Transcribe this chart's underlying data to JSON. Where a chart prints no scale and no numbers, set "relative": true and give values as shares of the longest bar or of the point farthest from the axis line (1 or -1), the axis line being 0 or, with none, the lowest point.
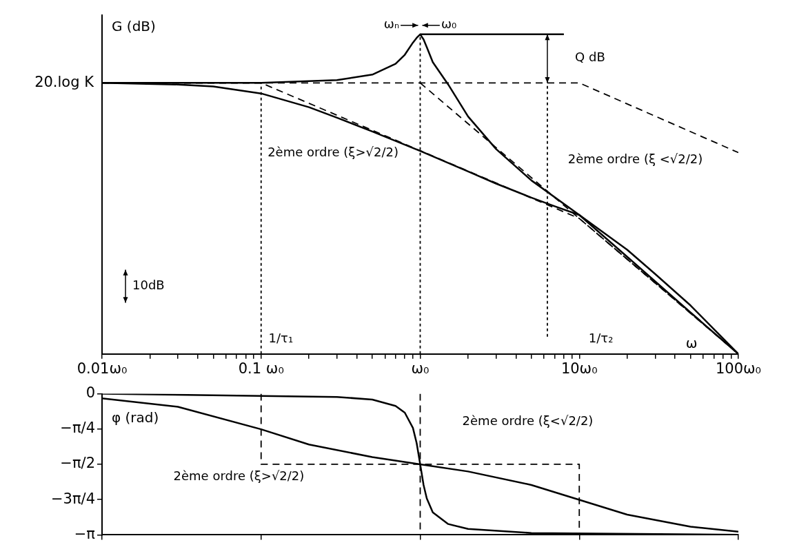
{
  "chart_data": [
    {
      "type": "line",
      "ylabel": "G (dB)",
      "xlabel": "ω",
      "log": "x",
      "marker": "none",
      "legend": false,
      "grid": false,
      "relative": true,
      "xlim": [
        0.01,
        100
      ],
      "xticks": [
        {
          "value": 0.01,
          "label": "0.01ω₀"
        },
        {
          "value": 0.02,
          "label": null
        },
        {
          "value": 0.03,
          "label": null
        },
        {
          "value": 0.04,
          "label": null
        },
        {
          "value": 0.05,
          "label": null
        },
        {
          "value": 0.06,
          "label": null
        },
        {
          "value": 0.07,
          "label": null
        },
        {
          "value": 0.08,
          "label": null
        },
        {
          "value": 0.09,
          "label": null
        },
        {
          "value": 0.1,
          "label": "0.1 ω₀"
        },
        {
          "value": 0.2,
          "label": null
        },
        {
          "value": 0.3,
          "label": null
        },
        {
          "value": 0.4,
          "label": null
        },
        {
          "value": 0.5,
          "label": null
        },
        {
          "value": 0.6,
          "label": null
        },
        {
          "value": 0.7,
          "label": null
        },
        {
          "value": 0.8,
          "label": null
        },
        {
          "value": 0.9,
          "label": null
        },
        {
          "value": 1,
          "label": "ω₀"
        },
        {
          "value": 2,
          "label": null
        },
        {
          "value": 3,
          "label": null
        },
        {
          "value": 4,
          "label": null
        },
        {
          "value": 5,
          "label": null
        },
        {
          "value": 6,
          "label": null
        },
        {
          "value": 7,
          "label": null
        },
        {
          "value": 8,
          "label": null
        },
        {
          "value": 9,
          "label": null
        },
        {
          "value": 10,
          "label": "10ω₀"
        },
        {
          "value": 20,
          "label": null
        },
        {
          "value": 30,
          "label": null
        },
        {
          "value": 40,
          "label": null
        },
        {
          "value": 50,
          "label": null
        },
        {
          "value": 60,
          "label": null
        },
        {
          "value": 70,
          "label": null
        },
        {
          "value": 80,
          "label": null
        },
        {
          "value": 90,
          "label": null
        },
        {
          "value": 100,
          "label": "100ω₀"
        }
      ],
      "series": [
        {
          "color": "#000000",
          "line_style": "solid",
          "x": [
            0.01,
            0.03,
            0.05,
            0.1,
            0.2,
            0.3,
            0.5,
            1,
            2,
            3,
            5,
            7,
            10,
            20,
            30,
            50,
            100
          ],
          "values": [
            0.848,
            0.843,
            0.837,
            0.815,
            0.772,
            0.739,
            0.696,
            0.635,
            0.571,
            0.533,
            0.489,
            0.462,
            0.435,
            0.326,
            0.25,
            0.152,
            0
          ]
        },
        {
          "color": "#000000",
          "line_style": "solid",
          "x": [
            0.01,
            0.1,
            0.3,
            0.5,
            0.7,
            0.8,
            0.9,
            0.95,
            1,
            1.05,
            1.1,
            1.2,
            1.5,
            2,
            3,
            5,
            10,
            20,
            50,
            100
          ],
          "values": [
            0.848,
            0.848,
            0.857,
            0.874,
            0.908,
            0.936,
            0.974,
            0.989,
            1,
            0.984,
            0.96,
            0.913,
            0.843,
            0.743,
            0.641,
            0.543,
            0.435,
            0.304,
            0.13,
            0
          ]
        },
        {
          "color": "#000000",
          "line_style": "dashed",
          "x": [
            0.01,
            0.1,
            10,
            100
          ],
          "values": [
            0.848,
            0.848,
            0.424,
            0
          ]
        },
        {
          "color": "#000000",
          "line_style": "dashed",
          "x": [
            1,
            100
          ],
          "values": [
            0.848,
            0
          ]
        },
        {
          "color": "#000000",
          "line_style": "dashed",
          "x": [
            0.01,
            10,
            100
          ],
          "values": [
            0.848,
            0.848,
            0.63
          ]
        },
        {
          "color": "#000000",
          "line_style": "dotted",
          "x": [
            0.1,
            0.1
          ],
          "values": [
            0,
            0.848
          ]
        },
        {
          "color": "#000000",
          "line_style": "dotted",
          "x": [
            1,
            1
          ],
          "values": [
            0,
            1
          ]
        },
        {
          "color": "#000000",
          "line_style": "dotted",
          "x": [
            6.3,
            6.3
          ],
          "values": [
            0.054,
            0.848
          ]
        },
        {
          "color": "#000000",
          "line_style": "solid",
          "x": [
            1,
            8
          ],
          "values": [
            1,
            1
          ]
        }
      ],
      "annotations": [
        "ωₙ",
        "ω₀",
        "Q dB",
        "10dB",
        "1/τ₁",
        "1/τ₂",
        "2ème ordre (ξ>√2/2)",
        "2ème ordre (ξ <√2/2)",
        "20.log K"
      ]
    },
    {
      "type": "line",
      "ylabel": "φ (rad)",
      "log": "x",
      "marker": "none",
      "legend": false,
      "grid": false,
      "tick_labels": "y",
      "xlim": [
        0.01,
        100
      ],
      "ylim": [
        -3.1416,
        0
      ],
      "xticks": [
        {
          "value": 0.01,
          "label": null
        },
        {
          "value": 0.1,
          "label": null
        },
        {
          "value": 1,
          "label": null
        },
        {
          "value": 10,
          "label": null
        },
        {
          "value": 100,
          "label": null
        }
      ],
      "yticks": [
        0,
        {
          "value": -0.7854,
          "label": "−π/4"
        },
        {
          "value": -1.5708,
          "label": "−π/2"
        },
        {
          "value": -2.3562,
          "label": "−3π/4"
        },
        {
          "value": -3.1416,
          "label": "−π"
        }
      ],
      "series": [
        {
          "color": "#000000",
          "line_style": "solid",
          "x": [
            0.01,
            0.03,
            0.1,
            0.2,
            0.5,
            1,
            2,
            5,
            10,
            20,
            50,
            100
          ],
          "values": [
            -0.1,
            -0.29,
            -0.79,
            -1.13,
            -1.41,
            -1.57,
            -1.73,
            -2.03,
            -2.36,
            -2.69,
            -2.96,
            -3.07
          ]
        },
        {
          "color": "#000000",
          "line_style": "solid",
          "x": [
            0.01,
            0.3,
            0.5,
            0.7,
            0.8,
            0.9,
            0.95,
            1,
            1.05,
            1.1,
            1.2,
            1.5,
            2,
            5,
            100
          ],
          "values": [
            0,
            -0.07,
            -0.13,
            -0.27,
            -0.42,
            -0.76,
            -1.1,
            -1.57,
            -2.03,
            -2.33,
            -2.64,
            -2.9,
            -3.01,
            -3.1,
            -3.14
          ]
        },
        {
          "color": "#000000",
          "line_style": "dashed",
          "x": [
            0.1,
            0.1,
            10,
            10
          ],
          "values": [
            0,
            -1.57,
            -1.57,
            -3.14
          ]
        },
        {
          "color": "#000000",
          "line_style": "dashed",
          "x": [
            1,
            1,
            10
          ],
          "values": [
            0,
            -3.14,
            -3.14
          ]
        }
      ],
      "annotations": [
        "2ème ordre (ξ<√2/2)",
        "2ème ordre (ξ>√2/2)"
      ]
    }
  ]
}
